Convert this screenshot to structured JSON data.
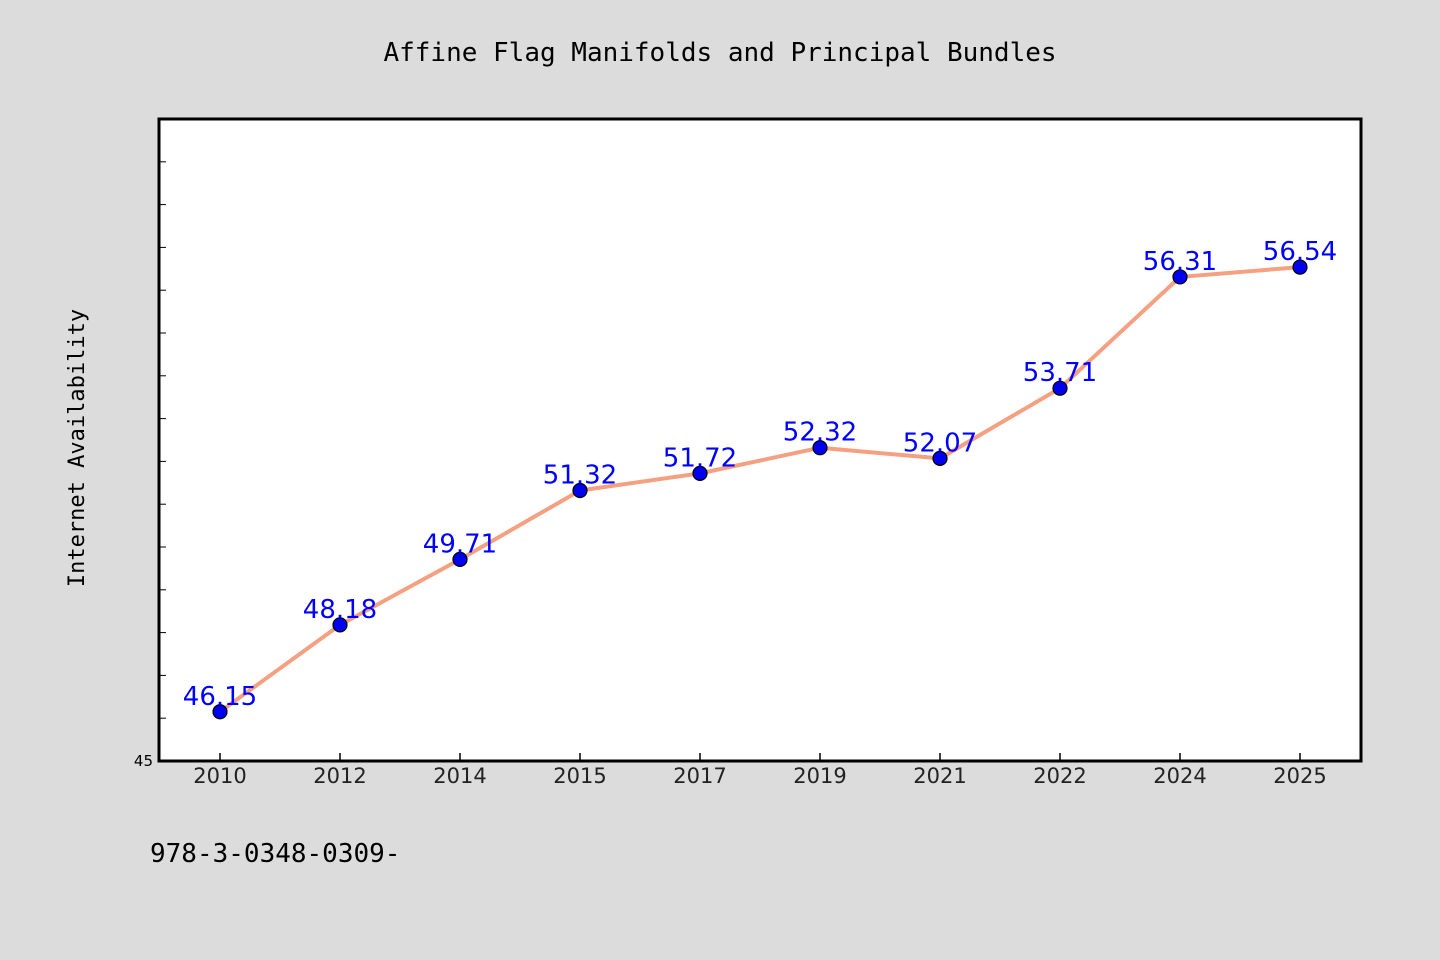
{
  "chart_data": {
    "type": "line",
    "title": "Affine Flag Manifolds and Principal Bundles",
    "xlabel": "",
    "ylabel": "Internet Availability",
    "categories": [
      "2010",
      "2012",
      "2014",
      "2015",
      "2017",
      "2019",
      "2021",
      "2022",
      "2024",
      "2025"
    ],
    "series": [
      {
        "values": [
          46.15,
          48.18,
          49.71,
          51.32,
          51.72,
          52.32,
          52.07,
          53.71,
          56.31,
          56.54
        ],
        "labels": [
          "46.15",
          "48.18",
          "49.71",
          "51.32",
          "51.72",
          "52.32",
          "52.07",
          "53.71",
          "56.31",
          "56.54"
        ],
        "line_color": "#f4a081",
        "marker_color": "#0000ee",
        "label_color": "#0000ff"
      }
    ],
    "ylim": [
      45,
      60
    ],
    "y_tick_labels": [
      "45"
    ],
    "grid": false,
    "legend": "none"
  },
  "footer_text": "978-3-0348-0309-",
  "colors": {
    "background": "#dcdcdc",
    "plot_background": "#ffffff",
    "frame": "#000000",
    "text": "#000000"
  }
}
